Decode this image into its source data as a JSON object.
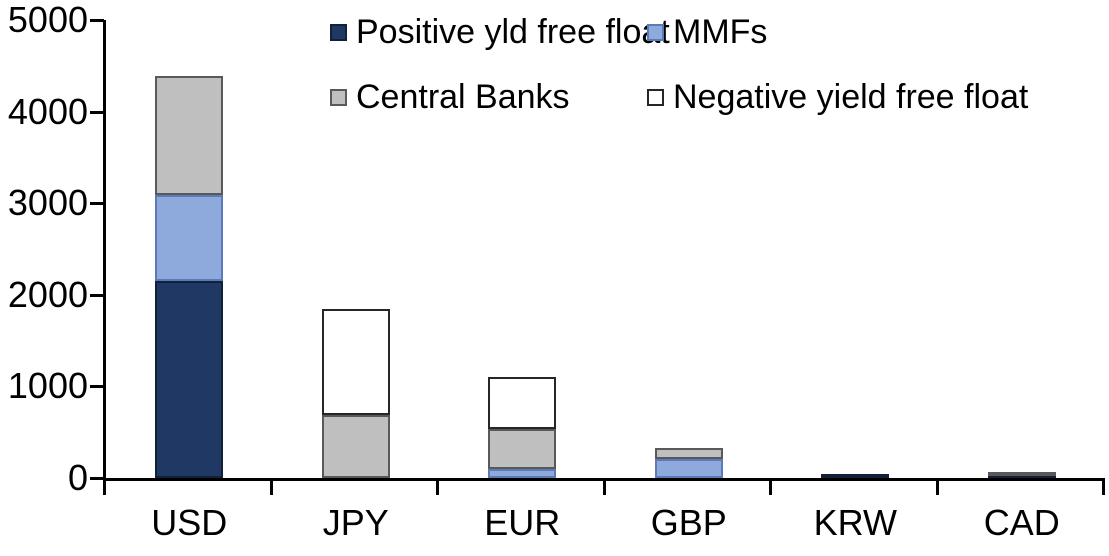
{
  "chart_data": {
    "type": "bar",
    "stacked": true,
    "title": "",
    "xlabel": "",
    "ylabel": "",
    "categories": [
      "USD",
      "JPY",
      "EUR",
      "GBP",
      "KRW",
      "CAD"
    ],
    "series": [
      {
        "name": "Positive yld free float",
        "color": "#1F3864",
        "border_color": "#12203A",
        "values": [
          2150,
          0,
          0,
          0,
          45,
          25
        ]
      },
      {
        "name": "MMFs",
        "color": "#8EA9DB",
        "border_color": "#5A7AB8",
        "values": [
          945,
          0,
          100,
          210,
          0,
          0
        ]
      },
      {
        "name": "Central Banks",
        "color": "#BFBFBF",
        "border_color": "#595959",
        "values": [
          1295,
          690,
          440,
          120,
          0,
          35
        ]
      },
      {
        "name": "Negative yield free float",
        "color": "#FFFFFF",
        "border_color": "#262626",
        "values": [
          0,
          1155,
          560,
          0,
          0,
          0
        ]
      }
    ],
    "totals": [
      4390,
      1845,
      1100,
      330,
      45,
      60
    ],
    "ylim": [
      0,
      5000
    ],
    "y_tick_values": [
      5000,
      4000,
      3000,
      2000,
      1000,
      0
    ],
    "y_tick_labels": [
      "5000",
      "4000",
      "3000",
      "2000",
      "1000",
      "0"
    ],
    "grid": false,
    "legend_position": "top",
    "legend_layout": "two-columns",
    "axis_color": "#000000",
    "background_color": "#FFFFFF"
  }
}
